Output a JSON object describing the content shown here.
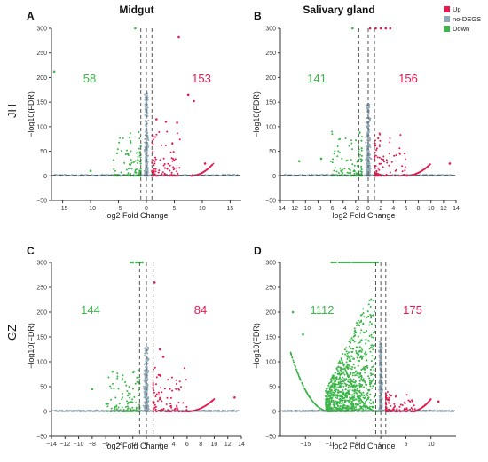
{
  "figure": {
    "col_titles": [
      "Midgut",
      "Salivary gland"
    ],
    "row_labels": [
      "JH",
      "GZ"
    ],
    "legend": [
      {
        "label": "Up",
        "color": "#e8174f"
      },
      {
        "label": "no-DEGS",
        "color": "#8fa8b8"
      },
      {
        "label": "Down",
        "color": "#3cb54a"
      }
    ]
  },
  "colors": {
    "up": "#e8174f",
    "nodeg": "#8fa8b8",
    "down": "#3cb54a",
    "guide": "#555555"
  },
  "chart_data": [
    {
      "panel": "A",
      "type": "scatter",
      "xlabel": "log2 Fold Change",
      "ylabel": "−log10(FDR)",
      "xlim": [
        -17,
        17
      ],
      "ylim": [
        -50,
        300
      ],
      "xticks": [
        -15,
        -10,
        -5,
        0,
        5,
        10,
        15
      ],
      "yticks": [
        -50,
        0,
        50,
        100,
        150,
        200,
        250,
        300
      ],
      "down_count": "58",
      "up_count": "153",
      "vlines": [
        -1,
        0,
        1
      ],
      "hline": 1.3,
      "highlights": [
        {
          "x": -16.5,
          "y": 212,
          "group": "down"
        },
        {
          "x": -2,
          "y": 300,
          "group": "down"
        },
        {
          "x": 5.8,
          "y": 282,
          "group": "up"
        },
        {
          "x": 7.5,
          "y": 165,
          "group": "up"
        },
        {
          "x": 8.5,
          "y": 152,
          "group": "up"
        },
        {
          "x": 5.5,
          "y": 108,
          "group": "up"
        },
        {
          "x": 3.5,
          "y": 110,
          "group": "up"
        },
        {
          "x": 1.8,
          "y": 115,
          "group": "up"
        },
        {
          "x": 10.5,
          "y": 25,
          "group": "up"
        },
        {
          "x": -10,
          "y": 10,
          "group": "down"
        }
      ]
    },
    {
      "panel": "B",
      "type": "scatter",
      "xlabel": "log2 Fold Change",
      "ylabel": "−log10(FDR)",
      "xlim": [
        -14,
        14
      ],
      "ylim": [
        -50,
        300
      ],
      "xticks": [
        -14,
        -12,
        -10,
        -8,
        -6,
        -4,
        -2,
        0,
        2,
        4,
        6,
        8,
        10,
        12,
        14
      ],
      "yticks": [
        -50,
        0,
        50,
        100,
        150,
        200,
        250,
        300
      ],
      "down_count": "141",
      "up_count": "156",
      "vlines": [
        -1.5,
        0,
        1
      ],
      "hline": 1.3,
      "highlights": [
        {
          "x": -2.5,
          "y": 300,
          "group": "down"
        },
        {
          "x": 0.3,
          "y": 300,
          "group": "up"
        },
        {
          "x": 1.2,
          "y": 300,
          "group": "up"
        },
        {
          "x": 2,
          "y": 300,
          "group": "up"
        },
        {
          "x": 2.8,
          "y": 300,
          "group": "up"
        },
        {
          "x": 3.5,
          "y": 300,
          "group": "up"
        },
        {
          "x": 13,
          "y": 25,
          "group": "up"
        },
        {
          "x": -11,
          "y": 30,
          "group": "down"
        },
        {
          "x": -7.5,
          "y": 35,
          "group": "down"
        }
      ]
    },
    {
      "panel": "C",
      "type": "scatter",
      "xlabel": "log2 Fold Change",
      "ylabel": "−log10(FDR)",
      "xlim": [
        -14,
        14
      ],
      "ylim": [
        -50,
        300
      ],
      "xticks": [
        -14,
        -12,
        -10,
        -8,
        -6,
        -4,
        -2,
        0,
        2,
        4,
        6,
        8,
        10,
        12,
        14
      ],
      "yticks": [
        -50,
        0,
        50,
        100,
        150,
        200,
        250,
        300
      ],
      "down_count": "144",
      "up_count": "84",
      "vlines": [
        -1,
        0,
        1
      ],
      "hline": 1.3,
      "highlights": [
        {
          "x": -1.5,
          "y": 300,
          "group": "down"
        },
        {
          "x": -1.2,
          "y": 300,
          "group": "down"
        },
        {
          "x": -0.9,
          "y": 300,
          "group": "down"
        },
        {
          "x": -0.6,
          "y": 300,
          "group": "down"
        },
        {
          "x": -2,
          "y": 300,
          "group": "down"
        },
        {
          "x": -2.3,
          "y": 300,
          "group": "down"
        },
        {
          "x": 1.2,
          "y": 260,
          "group": "up"
        },
        {
          "x": 2,
          "y": 125,
          "group": "up"
        },
        {
          "x": 2.5,
          "y": 110,
          "group": "up"
        },
        {
          "x": 13,
          "y": 28,
          "group": "up"
        },
        {
          "x": -8,
          "y": 45,
          "group": "down"
        },
        {
          "x": -5,
          "y": 80,
          "group": "down"
        }
      ]
    },
    {
      "panel": "D",
      "type": "scatter",
      "xlabel": "log2 Fold Change",
      "ylabel": "−log10(FDR)",
      "xlim": [
        -20,
        15
      ],
      "ylim": [
        -50,
        300
      ],
      "xticks": [
        -15,
        -10,
        -5,
        0,
        5,
        10
      ],
      "yticks": [
        -50,
        0,
        50,
        100,
        150,
        200,
        250,
        300
      ],
      "down_count": "1112",
      "up_count": "175",
      "vlines": [
        -1,
        0,
        1
      ],
      "hline": 1.3,
      "highlights": [
        {
          "x": -15.5,
          "y": 155,
          "group": "down"
        },
        {
          "x": -17.5,
          "y": 200,
          "group": "down"
        },
        {
          "x": 11.5,
          "y": 20,
          "group": "up"
        }
      ]
    }
  ]
}
